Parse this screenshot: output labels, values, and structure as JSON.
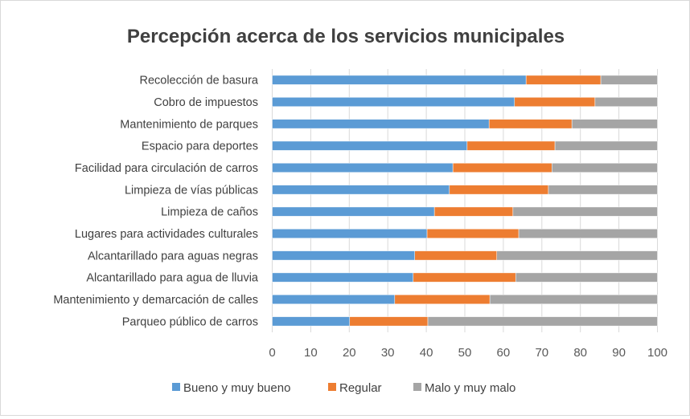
{
  "chart_data": {
    "type": "bar",
    "orientation": "horizontal",
    "stacked": true,
    "title": "Percepción acerca de los servicios municipales",
    "xlabel": "",
    "ylabel": "",
    "xlim": [
      0,
      100
    ],
    "xticks": [
      0,
      10,
      20,
      30,
      40,
      50,
      60,
      70,
      80,
      90,
      100
    ],
    "grid": "vertical",
    "legend_position": "bottom",
    "categories": [
      "Recolección de basura",
      "Cobro de impuestos",
      "Mantenimiento de parques",
      "Espacio para deportes",
      "Facilidad para circulación de carros",
      "Limpieza de vías públicas",
      "Limpieza de caños",
      "Lugares para actividades culturales",
      "Alcantarillado para aguas negras",
      "Alcantarillado para agua de lluvia",
      "Mantenimiento y demarcación de calles",
      "Parqueo público de carros"
    ],
    "series": [
      {
        "name": "Bueno y muy bueno",
        "color": "#5b9bd5",
        "values": [
          65.9,
          62.9,
          56.3,
          50.6,
          46.9,
          46.0,
          42.1,
          40.2,
          37.0,
          36.6,
          31.8,
          20.1
        ]
      },
      {
        "name": "Regular",
        "color": "#ed7d31",
        "values": [
          19.4,
          20.9,
          21.5,
          22.8,
          25.7,
          25.7,
          20.4,
          23.8,
          21.3,
          26.6,
          24.7,
          20.3
        ]
      },
      {
        "name": "Malo y muy malo",
        "color": "#a5a5a5",
        "values": [
          14.7,
          16.2,
          22.2,
          26.6,
          27.4,
          28.3,
          37.5,
          36.0,
          41.7,
          36.8,
          43.5,
          59.6
        ]
      }
    ]
  }
}
